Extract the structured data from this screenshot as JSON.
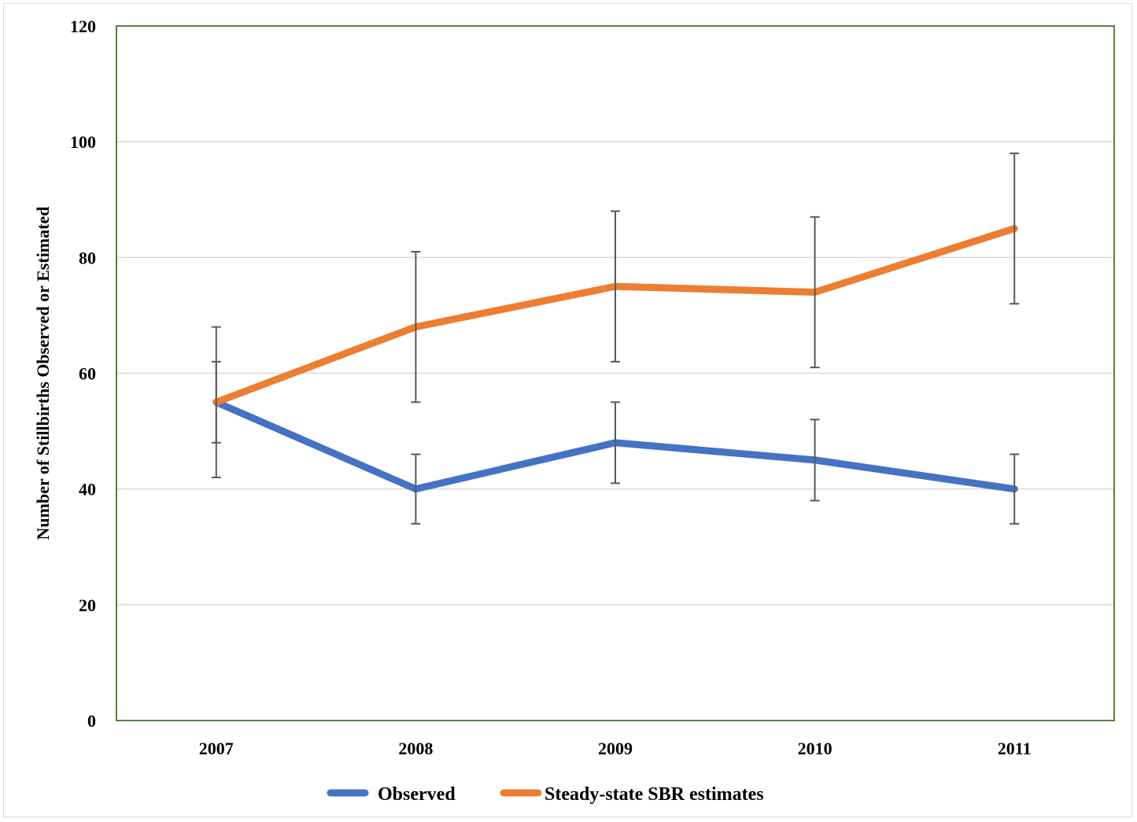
{
  "chart_data": {
    "type": "line",
    "x": [
      "2007",
      "2008",
      "2009",
      "2010",
      "2011"
    ],
    "ylabel": "Number of Stillbirths Observed or Estimated",
    "xlabel": "",
    "ylim": [
      0,
      120
    ],
    "yticks": [
      0,
      20,
      40,
      60,
      80,
      100,
      120
    ],
    "grid": true,
    "legend_position": "bottom",
    "series": [
      {
        "name": "Observed",
        "color": "#4472c4",
        "values": [
          55,
          40,
          48,
          45,
          40
        ],
        "error_low": [
          48,
          34,
          41,
          38,
          34
        ],
        "error_high": [
          62,
          46,
          55,
          52,
          46
        ]
      },
      {
        "name": "Steady-state SBR estimates",
        "color": "#ed7d31",
        "values": [
          55,
          68,
          75,
          74,
          85
        ],
        "error_low": [
          42,
          55,
          62,
          61,
          72
        ],
        "error_high": [
          68,
          81,
          88,
          87,
          98
        ]
      }
    ],
    "colors": {
      "plot_border": "#548235",
      "gridline": "#d9d9d9",
      "error_bar": "#595959"
    }
  }
}
